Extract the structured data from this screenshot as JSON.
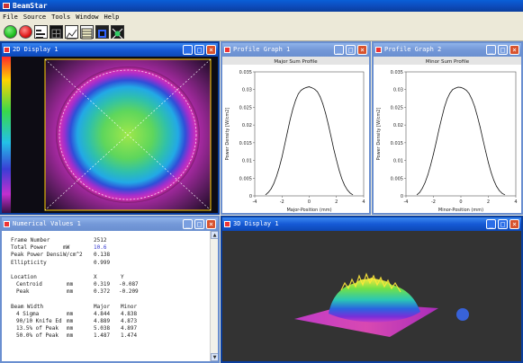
{
  "app": {
    "title": "BeamStar"
  },
  "menu": [
    {
      "label": "File"
    },
    {
      "label": "Source"
    },
    {
      "label": "Tools"
    },
    {
      "label": "Window"
    },
    {
      "label": "Help"
    }
  ],
  "toolbar": {
    "buttons": [
      "green-run-icon",
      "red-stop-icon",
      "profile-icon",
      "frame-grid-icon",
      "graph-icon",
      "table-icon",
      "camera-icon",
      "beam-3d-icon"
    ],
    "colors": {
      "run": "#1fbf1f",
      "stop": "#e01818"
    }
  },
  "display2d": {
    "title": "2D Display 1"
  },
  "profile1": {
    "title": "Profile Graph 1",
    "chart_data": {
      "type": "line",
      "title": "Major Sum Profile",
      "xlabel": "Major-Position (mm)",
      "ylabel": "Power Density [W/cm2]",
      "xlim": [
        -4,
        4
      ],
      "ylim": [
        0,
        0.035
      ],
      "xticks": [
        "-4",
        "-2",
        "0",
        "2",
        "4"
      ],
      "yticks": [
        "0",
        "0.005",
        "0.01",
        "0.015",
        "0.02",
        "0.025",
        "0.03",
        "0.035"
      ],
      "x": [
        -3.2,
        -3.0,
        -2.8,
        -2.6,
        -2.4,
        -2.2,
        -2.0,
        -1.8,
        -1.6,
        -1.4,
        -1.2,
        -1.0,
        -0.8,
        -0.6,
        -0.4,
        -0.2,
        0,
        0.2,
        0.4,
        0.6,
        0.8,
        1.0,
        1.2,
        1.4,
        1.6,
        1.8,
        2.0,
        2.2,
        2.4,
        2.6,
        2.8,
        3.0,
        3.2
      ],
      "y": [
        0.0003,
        0.001,
        0.002,
        0.0035,
        0.0055,
        0.008,
        0.011,
        0.0145,
        0.018,
        0.0215,
        0.0245,
        0.027,
        0.0288,
        0.0298,
        0.0303,
        0.0306,
        0.0308,
        0.0305,
        0.0301,
        0.0294,
        0.028,
        0.026,
        0.0233,
        0.0202,
        0.0168,
        0.0133,
        0.0101,
        0.0072,
        0.0048,
        0.003,
        0.0017,
        0.0008,
        0.0003
      ]
    }
  },
  "profile2": {
    "title": "Profile Graph 2",
    "chart_data": {
      "type": "line",
      "title": "Minor Sum Profile",
      "xlabel": "Minor-Position (mm)",
      "ylabel": "Power Density [W/cm2]",
      "xlim": [
        -4,
        4
      ],
      "ylim": [
        0,
        0.035
      ],
      "xticks": [
        "-4",
        "-2",
        "0",
        "2",
        "4"
      ],
      "yticks": [
        "0",
        "0.005",
        "0.01",
        "0.015",
        "0.02",
        "0.025",
        "0.03",
        "0.035"
      ],
      "x": [
        -3.2,
        -3.0,
        -2.8,
        -2.6,
        -2.4,
        -2.2,
        -2.0,
        -1.8,
        -1.6,
        -1.4,
        -1.2,
        -1.0,
        -0.8,
        -0.6,
        -0.4,
        -0.2,
        0,
        0.2,
        0.4,
        0.6,
        0.8,
        1.0,
        1.2,
        1.4,
        1.6,
        1.8,
        2.0,
        2.2,
        2.4,
        2.6,
        2.8,
        3.0,
        3.2
      ],
      "y": [
        0.0003,
        0.001,
        0.0022,
        0.0038,
        0.006,
        0.0087,
        0.0118,
        0.0152,
        0.0187,
        0.022,
        0.025,
        0.0274,
        0.029,
        0.03,
        0.0304,
        0.0307,
        0.0306,
        0.0303,
        0.0298,
        0.0289,
        0.0273,
        0.0252,
        0.0225,
        0.0194,
        0.016,
        0.0126,
        0.0094,
        0.0066,
        0.0044,
        0.0027,
        0.0015,
        0.0007,
        0.0003
      ]
    }
  },
  "numerical": {
    "title": "Numerical Values 1",
    "frame_number": {
      "label": "Frame Number",
      "value": "2512"
    },
    "total_power": {
      "label": "Total Power",
      "unit": "mW",
      "value": "10.6"
    },
    "peak_power": {
      "label": "Peak Power Densi",
      "unit": "W/cm^2",
      "value": "0.138"
    },
    "ellipticity": {
      "label": "Ellipticity",
      "value": "0.999"
    },
    "location": {
      "label": "Location",
      "col_x": "X",
      "col_y": "Y"
    },
    "centroid": {
      "label": "Centroid",
      "unit": "mm",
      "x": "0.319",
      "y": "-0.087"
    },
    "peak": {
      "label": "Peak",
      "unit": "mm",
      "x": "0.372",
      "y": "-0.209"
    },
    "beam_width": {
      "label": "Beam Width",
      "col_major": "Major",
      "col_minor": "Minor"
    },
    "rows": [
      {
        "label": "4 Sigma",
        "unit": "mm",
        "major": "4.844",
        "minor": "4.838"
      },
      {
        "label": "90/10 Knife Ed",
        "unit": "mm",
        "major": "4.889",
        "minor": "4.873"
      },
      {
        "label": "13.5% of Peak",
        "unit": "mm",
        "major": "5.038",
        "minor": "4.897"
      },
      {
        "label": "50.0% of Peak",
        "unit": "mm",
        "major": "1.487",
        "minor": "1.474"
      }
    ]
  },
  "display3d": {
    "title": "3D Display 1"
  }
}
